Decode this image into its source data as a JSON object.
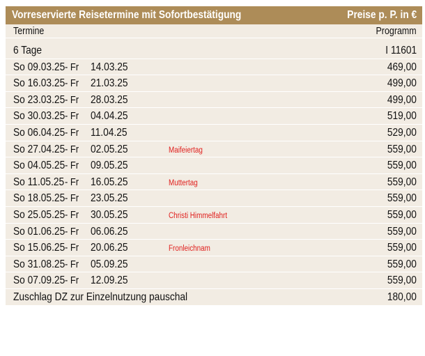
{
  "header": {
    "title": "Vorreservierte Reisetermine mit Sofortbestätigung",
    "price_label": "Preise p. P. in €"
  },
  "columns": {
    "left": "Termine",
    "right": "Programm"
  },
  "section": {
    "label": "6 Tage",
    "program": "I 11601"
  },
  "rows": [
    {
      "start": "So  09.03.25",
      "sep": "- Fr",
      "end": "14.03.25",
      "note": "",
      "price": "469,00"
    },
    {
      "start": "So  16.03.25",
      "sep": "- Fr",
      "end": "21.03.25",
      "note": "",
      "price": "499,00"
    },
    {
      "start": "So  23.03.25",
      "sep": "- Fr",
      "end": "28.03.25",
      "note": "",
      "price": "499,00"
    },
    {
      "start": "So  30.03.25",
      "sep": "- Fr",
      "end": "04.04.25",
      "note": "",
      "price": "519,00"
    },
    {
      "start": "So  06.04.25",
      "sep": "- Fr",
      "end": "11.04.25",
      "note": "",
      "price": "529,00"
    },
    {
      "start": "So  27.04.25",
      "sep": "- Fr",
      "end": "02.05.25",
      "note": "Maifeiertag",
      "price": "559,00"
    },
    {
      "start": "So  04.05.25",
      "sep": "- Fr",
      "end": "09.05.25",
      "note": "",
      "price": "559,00"
    },
    {
      "start": "So  11.05.25",
      "sep": "- Fr",
      "end": "16.05.25",
      "note": "Muttertag",
      "price": "559,00"
    },
    {
      "start": "So  18.05.25",
      "sep": "- Fr",
      "end": "23.05.25",
      "note": "",
      "price": "559,00"
    },
    {
      "start": "So  25.05.25",
      "sep": "- Fr",
      "end": "30.05.25",
      "note": "Christi Himmelfahrt",
      "price": "559,00"
    },
    {
      "start": "So  01.06.25",
      "sep": "- Fr",
      "end": "06.06.25",
      "note": "",
      "price": "559,00"
    },
    {
      "start": "So  15.06.25",
      "sep": "- Fr",
      "end": "20.06.25",
      "note": "Fronleichnam",
      "price": "559,00"
    },
    {
      "start": "So  31.08.25",
      "sep": "- Fr",
      "end": "05.09.25",
      "note": "",
      "price": "559,00"
    },
    {
      "start": "So  07.09.25",
      "sep": "- Fr",
      "end": "12.09.25",
      "note": "",
      "price": "559,00"
    }
  ],
  "footer": {
    "label": "Zuschlag DZ zur Einzelnutzung pauschal",
    "price": "180,00"
  },
  "colors": {
    "title_bar": "#ad8c58",
    "row_bg": "#f2ece3",
    "note_red": "#e0201e"
  }
}
